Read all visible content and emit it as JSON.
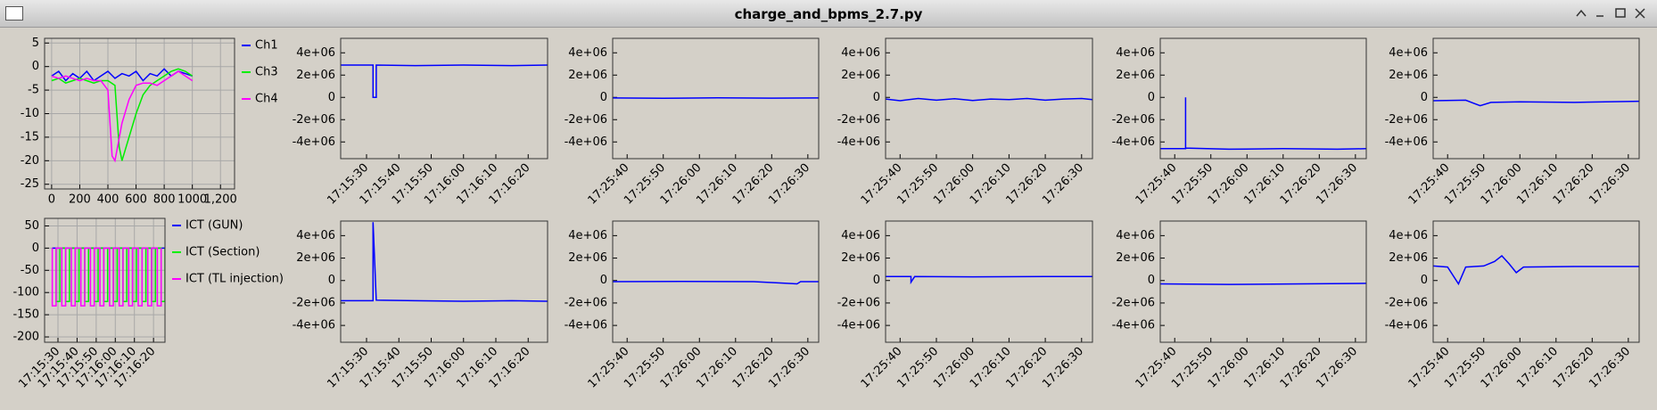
{
  "window": {
    "title": "charge_and_bpms_2.7.py"
  },
  "chart_data": [
    {
      "type": "line",
      "xlim": [
        -50,
        1300
      ],
      "ylim": [
        -26,
        6
      ],
      "xticks": [
        0,
        200,
        400,
        600,
        800,
        1000,
        {
          "value": 1200,
          "label": "1,200"
        }
      ],
      "yticks": [
        -25,
        -20,
        -15,
        -10,
        -5,
        0,
        5
      ],
      "grid": true,
      "legend": "right",
      "series": [
        {
          "name": "Ch1",
          "color": "#0000ff",
          "x": [
            0,
            50,
            100,
            150,
            200,
            250,
            300,
            350,
            400,
            450,
            500,
            550,
            600,
            650,
            700,
            750,
            800,
            850,
            900,
            950,
            1000
          ],
          "values": [
            -2,
            -1,
            -3,
            -1.5,
            -2.5,
            -1,
            -3,
            -2,
            -1,
            -2.5,
            -1.5,
            -2,
            -1,
            -3,
            -1.5,
            -2,
            -0.5,
            -2,
            -1,
            -1.5,
            -2
          ]
        },
        {
          "name": "Ch3",
          "color": "#00ee00",
          "x": [
            0,
            50,
            100,
            150,
            200,
            250,
            300,
            350,
            400,
            450,
            480,
            500,
            550,
            600,
            650,
            700,
            750,
            800,
            850,
            900,
            950,
            1000
          ],
          "values": [
            -3,
            -2.5,
            -3.5,
            -3,
            -2.5,
            -3,
            -3.5,
            -3,
            -3,
            -4,
            -17,
            -20,
            -15,
            -10,
            -6,
            -4,
            -3,
            -2,
            -1,
            -0.5,
            -1,
            -2
          ]
        },
        {
          "name": "Ch4",
          "color": "#ff00ff",
          "x": [
            0,
            50,
            100,
            150,
            200,
            250,
            300,
            350,
            400,
            430,
            450,
            500,
            550,
            600,
            650,
            700,
            750,
            800,
            850,
            900,
            950,
            1000
          ],
          "values": [
            -2,
            -2.5,
            -2,
            -2.5,
            -3,
            -2.5,
            -3,
            -3,
            -5,
            -19,
            -20,
            -12,
            -7,
            -4,
            -3.5,
            -3.5,
            -4,
            -3,
            -2,
            -1,
            -2,
            -3
          ]
        }
      ]
    },
    {
      "type": "line",
      "xlim": [
        "17:15:23",
        "17:16:26"
      ],
      "ylim": [
        -212,
        67
      ],
      "xticks": [
        "17:15:30",
        "17:15:40",
        "17:15:50",
        "17:16:00",
        "17:16:10",
        "17:16:20"
      ],
      "yticks": [
        -200,
        -150,
        -100,
        -50,
        0,
        50
      ],
      "grid": true,
      "legend": "right",
      "series": [
        {
          "name": "ICT (GUN)",
          "color": "#0000ff",
          "x": [
            "17:15:27",
            "17:16:26"
          ],
          "values": [
            0,
            0
          ]
        },
        {
          "name": "ICT (Section)",
          "color": "#00ee00",
          "x": [
            "17:15:29",
            "17:15:29",
            "17:15:31",
            "17:15:31",
            "17:15:34",
            "17:15:34",
            "17:15:36",
            "17:15:36",
            "17:15:39",
            "17:15:39",
            "17:15:41",
            "17:15:41",
            "17:15:44",
            "17:15:44",
            "17:15:46",
            "17:15:46",
            "17:15:49",
            "17:15:49",
            "17:15:51",
            "17:15:51",
            "17:15:54",
            "17:15:54",
            "17:15:56",
            "17:15:56",
            "17:15:59",
            "17:15:59",
            "17:16:01",
            "17:16:01",
            "17:16:04",
            "17:16:04",
            "17:16:06",
            "17:16:06",
            "17:16:09",
            "17:16:09",
            "17:16:11",
            "17:16:11",
            "17:16:14",
            "17:16:14",
            "17:16:16",
            "17:16:16",
            "17:16:19",
            "17:16:19",
            "17:16:21",
            "17:16:21",
            "17:16:24",
            "17:16:24",
            "17:16:26",
            "17:16:26"
          ],
          "values": [
            0,
            -120,
            -120,
            0,
            0,
            -120,
            -120,
            0,
            0,
            -120,
            -120,
            0,
            0,
            -120,
            -120,
            0,
            0,
            -120,
            -120,
            0,
            0,
            -120,
            -120,
            0,
            0,
            -120,
            -120,
            0,
            0,
            -120,
            -120,
            0,
            0,
            -120,
            -120,
            0,
            0,
            -120,
            -120,
            0,
            0,
            -120,
            -120,
            0,
            0,
            -120,
            -120,
            0
          ]
        },
        {
          "name": "ICT (TL injection)",
          "color": "#ff00ff",
          "x": [
            "17:15:27",
            "17:15:27",
            "17:15:29",
            "17:15:29",
            "17:15:32",
            "17:15:32",
            "17:15:34",
            "17:15:34",
            "17:15:37",
            "17:15:37",
            "17:15:39",
            "17:15:39",
            "17:15:42",
            "17:15:42",
            "17:15:44",
            "17:15:44",
            "17:15:47",
            "17:15:47",
            "17:15:49",
            "17:15:49",
            "17:15:52",
            "17:15:52",
            "17:15:54",
            "17:15:54",
            "17:15:57",
            "17:15:57",
            "17:15:59",
            "17:15:59",
            "17:16:02",
            "17:16:02",
            "17:16:04",
            "17:16:04",
            "17:16:07",
            "17:16:07",
            "17:16:09",
            "17:16:09",
            "17:16:12",
            "17:16:12",
            "17:16:14",
            "17:16:14",
            "17:16:17",
            "17:16:17",
            "17:16:19",
            "17:16:19",
            "17:16:22",
            "17:16:22",
            "17:16:24",
            "17:16:24"
          ],
          "values": [
            0,
            -130,
            -130,
            0,
            0,
            -130,
            -130,
            0,
            0,
            -130,
            -130,
            0,
            0,
            -130,
            -130,
            0,
            0,
            -130,
            -130,
            0,
            0,
            -130,
            -130,
            0,
            0,
            -130,
            -130,
            0,
            0,
            -130,
            -130,
            0,
            0,
            -130,
            -130,
            0,
            0,
            -130,
            -130,
            0,
            0,
            -130,
            -130,
            0,
            0,
            -130,
            -130,
            0
          ]
        }
      ]
    },
    {
      "type": "line",
      "xlim": [
        "17:15:22",
        "17:16:26"
      ],
      "ylim": [
        -5500000,
        5300000
      ],
      "xticks": [
        "17:15:30",
        "17:15:40",
        "17:15:50",
        "17:16:00",
        "17:16:10",
        "17:16:20"
      ],
      "yticks": [
        {
          "value": -4000000,
          "label": "-4e+06"
        },
        {
          "value": -2000000,
          "label": "-2e+06"
        },
        0,
        {
          "value": 2000000,
          "label": "2e+06"
        },
        {
          "value": 4000000,
          "label": "4e+06"
        }
      ],
      "grid": false,
      "series": [
        {
          "color": "#0000ff",
          "x": [
            "17:15:22",
            "17:15:32",
            "17:15:32",
            "17:15:33",
            "17:15:33",
            "17:15:45",
            "17:16:00",
            "17:16:15",
            "17:16:26"
          ],
          "values": [
            2900000,
            2900000,
            0,
            0,
            2900000,
            2850000,
            2900000,
            2850000,
            2900000
          ]
        }
      ]
    },
    {
      "type": "line",
      "xlim": [
        "17:25:36",
        "17:26:33"
      ],
      "ylim": [
        -5500000,
        5300000
      ],
      "xticks": [
        "17:25:40",
        "17:25:50",
        "17:26:00",
        "17:26:10",
        "17:26:20",
        "17:26:30"
      ],
      "yticks": [
        {
          "value": -4000000,
          "label": "-4e+06"
        },
        {
          "value": -2000000,
          "label": "-2e+06"
        },
        0,
        {
          "value": 2000000,
          "label": "2e+06"
        },
        {
          "value": 4000000,
          "label": "4e+06"
        }
      ],
      "grid": false,
      "series": [
        {
          "color": "#0000ff",
          "x": [
            "17:25:36",
            "17:25:50",
            "17:26:05",
            "17:26:20",
            "17:26:33"
          ],
          "values": [
            -50000,
            -80000,
            -40000,
            -70000,
            -50000
          ]
        }
      ]
    },
    {
      "type": "line",
      "xlim": [
        "17:25:36",
        "17:26:33"
      ],
      "ylim": [
        -5500000,
        5300000
      ],
      "xticks": [
        "17:25:40",
        "17:25:50",
        "17:26:00",
        "17:26:10",
        "17:26:20",
        "17:26:30"
      ],
      "yticks": [
        {
          "value": -4000000,
          "label": "-4e+06"
        },
        {
          "value": -2000000,
          "label": "-2e+06"
        },
        0,
        {
          "value": 2000000,
          "label": "2e+06"
        },
        {
          "value": 4000000,
          "label": "4e+06"
        }
      ],
      "grid": false,
      "series": [
        {
          "color": "#0000ff",
          "x": [
            "17:25:36",
            "17:25:40",
            "17:25:45",
            "17:25:50",
            "17:25:55",
            "17:26:00",
            "17:26:05",
            "17:26:10",
            "17:26:15",
            "17:26:20",
            "17:26:25",
            "17:26:30",
            "17:26:33"
          ],
          "values": [
            -150000,
            -300000,
            -100000,
            -250000,
            -120000,
            -280000,
            -150000,
            -200000,
            -100000,
            -250000,
            -150000,
            -100000,
            -200000
          ]
        }
      ]
    },
    {
      "type": "line",
      "xlim": [
        "17:25:36",
        "17:26:33"
      ],
      "ylim": [
        -5500000,
        5300000
      ],
      "xticks": [
        "17:25:40",
        "17:25:50",
        "17:26:00",
        "17:26:10",
        "17:26:20",
        "17:26:30"
      ],
      "yticks": [
        {
          "value": -4000000,
          "label": "-4e+06"
        },
        {
          "value": -2000000,
          "label": "-2e+06"
        },
        0,
        {
          "value": 2000000,
          "label": "2e+06"
        },
        {
          "value": 4000000,
          "label": "4e+06"
        }
      ],
      "grid": false,
      "series": [
        {
          "color": "#0000ff",
          "x": [
            "17:25:36",
            "17:25:43",
            "17:25:43",
            "17:25:43",
            "17:25:55",
            "17:26:10",
            "17:26:25",
            "17:26:33"
          ],
          "values": [
            -4600000,
            -4600000,
            0,
            -4550000,
            -4650000,
            -4600000,
            -4650000,
            -4600000
          ]
        }
      ]
    },
    {
      "type": "line",
      "xlim": [
        "17:25:36",
        "17:26:33"
      ],
      "ylim": [
        -5500000,
        5300000
      ],
      "xticks": [
        "17:25:40",
        "17:25:50",
        "17:26:00",
        "17:26:10",
        "17:26:20",
        "17:26:30"
      ],
      "yticks": [
        {
          "value": -4000000,
          "label": "-4e+06"
        },
        {
          "value": -2000000,
          "label": "-2e+06"
        },
        0,
        {
          "value": 2000000,
          "label": "2e+06"
        },
        {
          "value": 4000000,
          "label": "4e+06"
        }
      ],
      "grid": false,
      "series": [
        {
          "color": "#0000ff",
          "x": [
            "17:25:36",
            "17:25:45",
            "17:25:49",
            "17:25:52",
            "17:26:00",
            "17:26:15",
            "17:26:33"
          ],
          "values": [
            -300000,
            -250000,
            -750000,
            -450000,
            -400000,
            -450000,
            -350000
          ]
        }
      ]
    },
    {
      "type": "line",
      "xlim": [
        "17:15:22",
        "17:16:26"
      ],
      "ylim": [
        -5500000,
        5300000
      ],
      "xticks": [
        "17:15:30",
        "17:15:40",
        "17:15:50",
        "17:16:00",
        "17:16:10",
        "17:16:20"
      ],
      "yticks": [
        {
          "value": -4000000,
          "label": "-4e+06"
        },
        {
          "value": -2000000,
          "label": "-2e+06"
        },
        0,
        {
          "value": 2000000,
          "label": "2e+06"
        },
        {
          "value": 4000000,
          "label": "4e+06"
        }
      ],
      "grid": false,
      "series": [
        {
          "color": "#0000ff",
          "x": [
            "17:15:22",
            "17:15:32",
            "17:15:32",
            "17:15:33",
            "17:15:45",
            "17:16:00",
            "17:16:15",
            "17:16:26"
          ],
          "values": [
            -1800000,
            -1800000,
            5200000,
            -1750000,
            -1800000,
            -1850000,
            -1800000,
            -1850000
          ]
        }
      ]
    },
    {
      "type": "line",
      "xlim": [
        "17:25:36",
        "17:26:33"
      ],
      "ylim": [
        -5500000,
        5300000
      ],
      "xticks": [
        "17:25:40",
        "17:25:50",
        "17:26:00",
        "17:26:10",
        "17:26:20",
        "17:26:30"
      ],
      "yticks": [
        {
          "value": -4000000,
          "label": "-4e+06"
        },
        {
          "value": -2000000,
          "label": "-2e+06"
        },
        0,
        {
          "value": 2000000,
          "label": "2e+06"
        },
        {
          "value": 4000000,
          "label": "4e+06"
        }
      ],
      "grid": false,
      "series": [
        {
          "color": "#0000ff",
          "x": [
            "17:25:36",
            "17:25:55",
            "17:26:15",
            "17:26:27",
            "17:26:28",
            "17:26:33"
          ],
          "values": [
            -100000,
            -80000,
            -100000,
            -300000,
            -100000,
            -100000
          ]
        }
      ]
    },
    {
      "type": "line",
      "xlim": [
        "17:25:36",
        "17:26:33"
      ],
      "ylim": [
        -5500000,
        5300000
      ],
      "xticks": [
        "17:25:40",
        "17:25:50",
        "17:26:00",
        "17:26:10",
        "17:26:20",
        "17:26:30"
      ],
      "yticks": [
        {
          "value": -4000000,
          "label": "-4e+06"
        },
        {
          "value": -2000000,
          "label": "-2e+06"
        },
        0,
        {
          "value": 2000000,
          "label": "2e+06"
        },
        {
          "value": 4000000,
          "label": "4e+06"
        }
      ],
      "grid": false,
      "series": [
        {
          "color": "#0000ff",
          "x": [
            "17:25:36",
            "17:25:43",
            "17:25:43",
            "17:25:44",
            "17:26:00",
            "17:26:20",
            "17:26:33"
          ],
          "values": [
            350000,
            350000,
            -150000,
            350000,
            330000,
            350000,
            350000
          ]
        }
      ]
    },
    {
      "type": "line",
      "xlim": [
        "17:25:36",
        "17:26:33"
      ],
      "ylim": [
        -5500000,
        5300000
      ],
      "xticks": [
        "17:25:40",
        "17:25:50",
        "17:26:00",
        "17:26:10",
        "17:26:20",
        "17:26:30"
      ],
      "yticks": [
        {
          "value": -4000000,
          "label": "-4e+06"
        },
        {
          "value": -2000000,
          "label": "-2e+06"
        },
        0,
        {
          "value": 2000000,
          "label": "2e+06"
        },
        {
          "value": 4000000,
          "label": "4e+06"
        }
      ],
      "grid": false,
      "series": [
        {
          "color": "#0000ff",
          "x": [
            "17:25:36",
            "17:25:55",
            "17:26:15",
            "17:26:33"
          ],
          "values": [
            -300000,
            -350000,
            -300000,
            -250000
          ]
        }
      ]
    },
    {
      "type": "line",
      "xlim": [
        "17:25:36",
        "17:26:33"
      ],
      "ylim": [
        -5500000,
        5300000
      ],
      "xticks": [
        "17:25:40",
        "17:25:50",
        "17:26:00",
        "17:26:10",
        "17:26:20",
        "17:26:30"
      ],
      "yticks": [
        {
          "value": -4000000,
          "label": "-4e+06"
        },
        {
          "value": -2000000,
          "label": "-2e+06"
        },
        0,
        {
          "value": 2000000,
          "label": "2e+06"
        },
        {
          "value": 4000000,
          "label": "4e+06"
        }
      ],
      "grid": false,
      "series": [
        {
          "color": "#0000ff",
          "x": [
            "17:25:36",
            "17:25:40",
            "17:25:43",
            "17:25:45",
            "17:25:50",
            "17:25:53",
            "17:25:55",
            "17:25:57",
            "17:25:59",
            "17:26:01",
            "17:26:15",
            "17:26:33"
          ],
          "values": [
            1300000,
            1200000,
            -300000,
            1200000,
            1300000,
            1700000,
            2200000,
            1500000,
            700000,
            1200000,
            1250000,
            1250000
          ]
        }
      ]
    }
  ]
}
